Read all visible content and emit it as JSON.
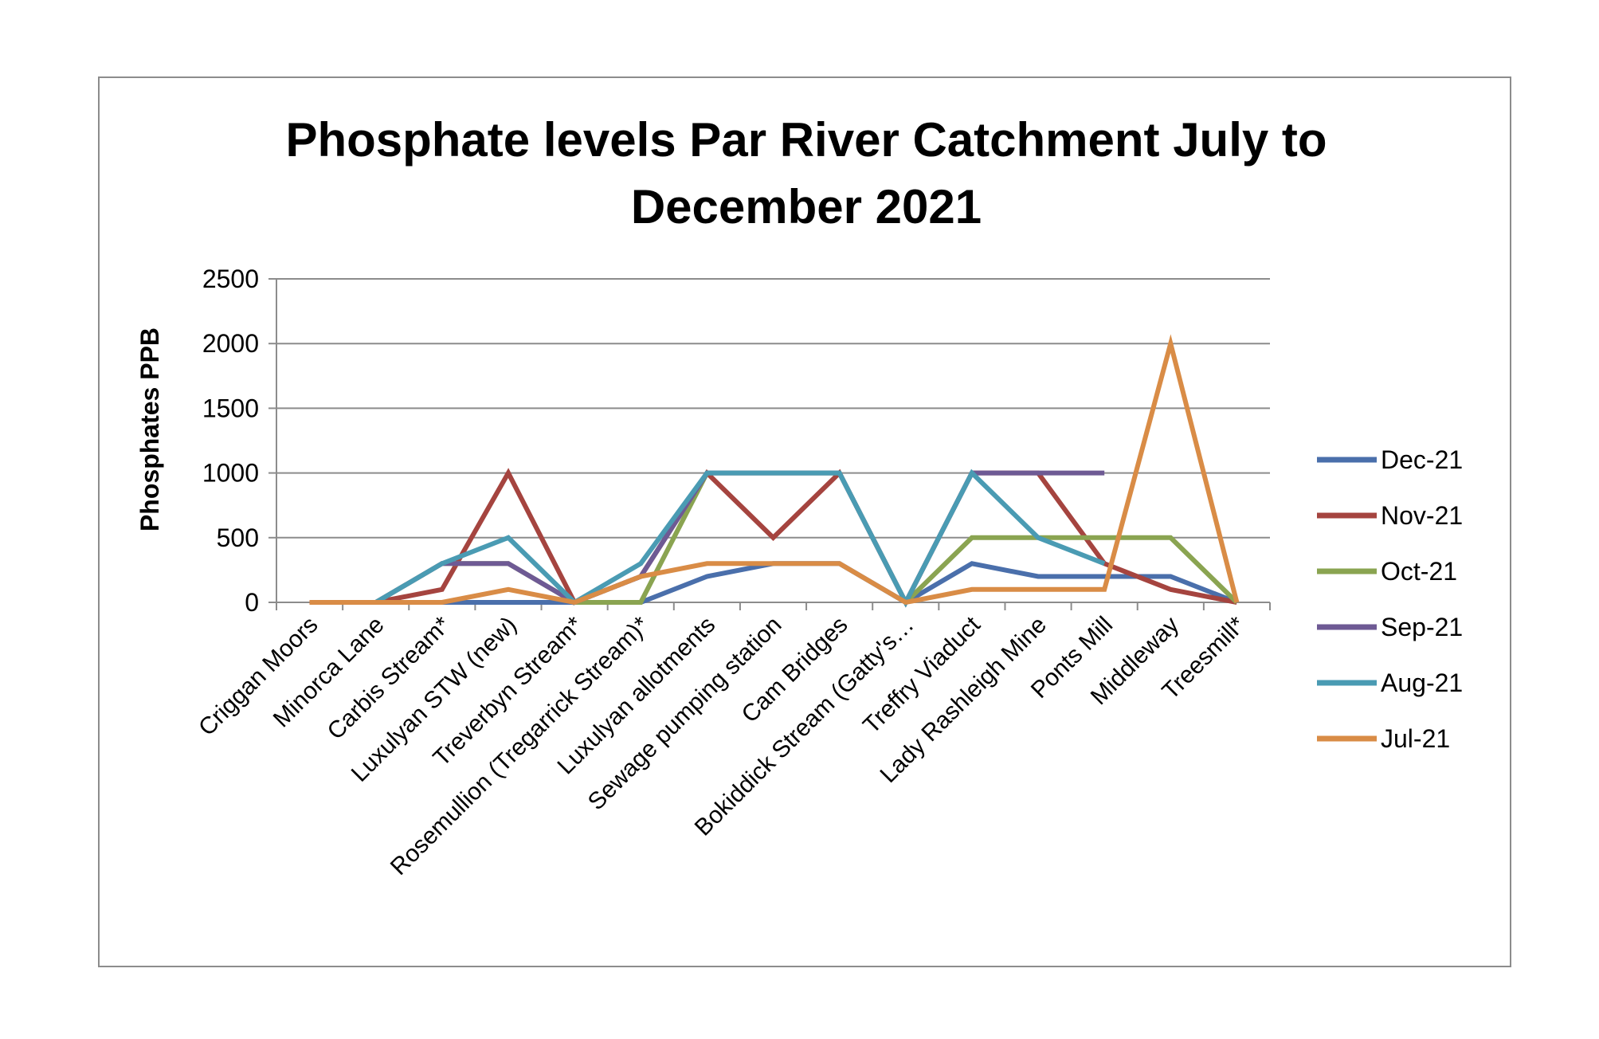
{
  "chart_data": {
    "type": "line",
    "title_lines": [
      "Phosphate levels Par River Catchment July to",
      "December 2021"
    ],
    "xlabel": "",
    "ylabel": "Phosphates PPB",
    "ylim": [
      0,
      2500
    ],
    "yticks": [
      "0",
      "500",
      "1000",
      "1500",
      "2000",
      "2500"
    ],
    "grid": "horizontal",
    "legend_position": "right",
    "categories": [
      "Criggan Moors",
      "Minorca Lane",
      "Carbis Stream*",
      "Luxulyan STW (new)",
      "Treverbyn Stream*",
      "Rosemullion (Tregarrick Stream)*",
      "Luxulyan allotments",
      "Sewage pumping station",
      "Cam Bridges",
      "Bokiddick Stream (Gatty's…",
      "Treffry Viaduct",
      "Lady Rashleigh Mine",
      "Ponts Mill",
      "Middleway",
      "Treesmill*"
    ],
    "series": [
      {
        "name": "Dec-21",
        "color": "#4a6fab",
        "values": [
          0,
          0,
          0,
          0,
          0,
          0,
          200,
          300,
          300,
          0,
          300,
          200,
          200,
          200,
          0
        ]
      },
      {
        "name": "Nov-21",
        "color": "#a5443f",
        "values": [
          0,
          0,
          100,
          1000,
          0,
          200,
          1000,
          500,
          1000,
          0,
          1000,
          1000,
          300,
          100,
          0
        ]
      },
      {
        "name": "Oct-21",
        "color": "#8aa451",
        "values": [
          null,
          0,
          300,
          300,
          0,
          0,
          1000,
          1000,
          1000,
          0,
          500,
          500,
          500,
          500,
          0
        ]
      },
      {
        "name": "Sep-21",
        "color": "#6e5a94",
        "values": [
          null,
          0,
          300,
          300,
          0,
          200,
          1000,
          1000,
          1000,
          0,
          1000,
          1000,
          1000,
          null,
          null
        ]
      },
      {
        "name": "Aug-21",
        "color": "#4a9bb3",
        "values": [
          null,
          0,
          300,
          500,
          0,
          300,
          1000,
          1000,
          1000,
          0,
          1000,
          500,
          300,
          null,
          null
        ]
      },
      {
        "name": "Jul-21",
        "color": "#d98c46",
        "values": [
          0,
          0,
          0,
          100,
          0,
          200,
          300,
          300,
          300,
          0,
          100,
          100,
          100,
          2000,
          0
        ]
      }
    ]
  }
}
